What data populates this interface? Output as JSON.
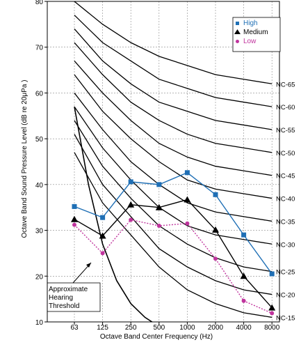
{
  "chart_data": {
    "type": "line",
    "xlabel": "Octave Band Center Frequency (Hz)",
    "ylabel": "Octave Band Sound Pressure Level (dB re 20μPa )",
    "categories": [
      "63",
      "125",
      "250",
      "500",
      "1000",
      "2000",
      "4000",
      "8000"
    ],
    "ylim": [
      10,
      80
    ],
    "yticks": [
      "10",
      "20",
      "30",
      "40",
      "50",
      "60",
      "70",
      "80"
    ],
    "grid": true,
    "legend_position": "top-right",
    "series": [
      {
        "name": "High",
        "color": "#1f6fb5",
        "marker": "square",
        "values": [
          35.2,
          32.8,
          40.6,
          40.0,
          42.6,
          37.8,
          29.0,
          20.5
        ]
      },
      {
        "name": "Medium",
        "color": "#000000",
        "marker": "triangle",
        "values": [
          32.4,
          28.8,
          35.6,
          35.0,
          36.7,
          30.1,
          20.0,
          13.1
        ]
      },
      {
        "name": "Low",
        "color": "#c0339d",
        "marker": "circle",
        "values": [
          31.2,
          25.0,
          32.3,
          31.0,
          31.5,
          23.8,
          14.6,
          11.9
        ]
      }
    ],
    "nc_curves": [
      {
        "name": "NC-65",
        "values": [
          80,
          75,
          71,
          68,
          66,
          64,
          63,
          62
        ]
      },
      {
        "name": "NC-60",
        "values": [
          77,
          71,
          67,
          63,
          61,
          59,
          58,
          57
        ]
      },
      {
        "name": "NC-55",
        "values": [
          74,
          67,
          62,
          58,
          56,
          54,
          53,
          52
        ]
      },
      {
        "name": "NC-50",
        "values": [
          71,
          64,
          58,
          54,
          51,
          49,
          48,
          47
        ]
      },
      {
        "name": "NC-45",
        "values": [
          67,
          60,
          54,
          49,
          46,
          44,
          43,
          42
        ]
      },
      {
        "name": "NC-40",
        "values": [
          64,
          56,
          50,
          45,
          41,
          39,
          38,
          37
        ]
      },
      {
        "name": "NC-35",
        "values": [
          60,
          52,
          45,
          40,
          36,
          34,
          33,
          32
        ]
      },
      {
        "name": "NC-30",
        "values": [
          57,
          48,
          41,
          35,
          31,
          29,
          28,
          27
        ]
      },
      {
        "name": "NC-25",
        "values": [
          54,
          44,
          37,
          31,
          27,
          24,
          22,
          21
        ]
      },
      {
        "name": "NC-20",
        "values": [
          51,
          40,
          33,
          26,
          22,
          19,
          17,
          16
        ]
      },
      {
        "name": "NC-15",
        "values": [
          47,
          36,
          29,
          22,
          17,
          14,
          12,
          11
        ]
      }
    ],
    "hearing_threshold": {
      "label": "Approximate Hearing Threshold",
      "points": [
        [
          0,
          57
        ],
        [
          0.5,
          40
        ],
        [
          1,
          27
        ],
        [
          1.5,
          19
        ],
        [
          2,
          14
        ],
        [
          2.5,
          11
        ],
        [
          3,
          9
        ]
      ]
    }
  }
}
